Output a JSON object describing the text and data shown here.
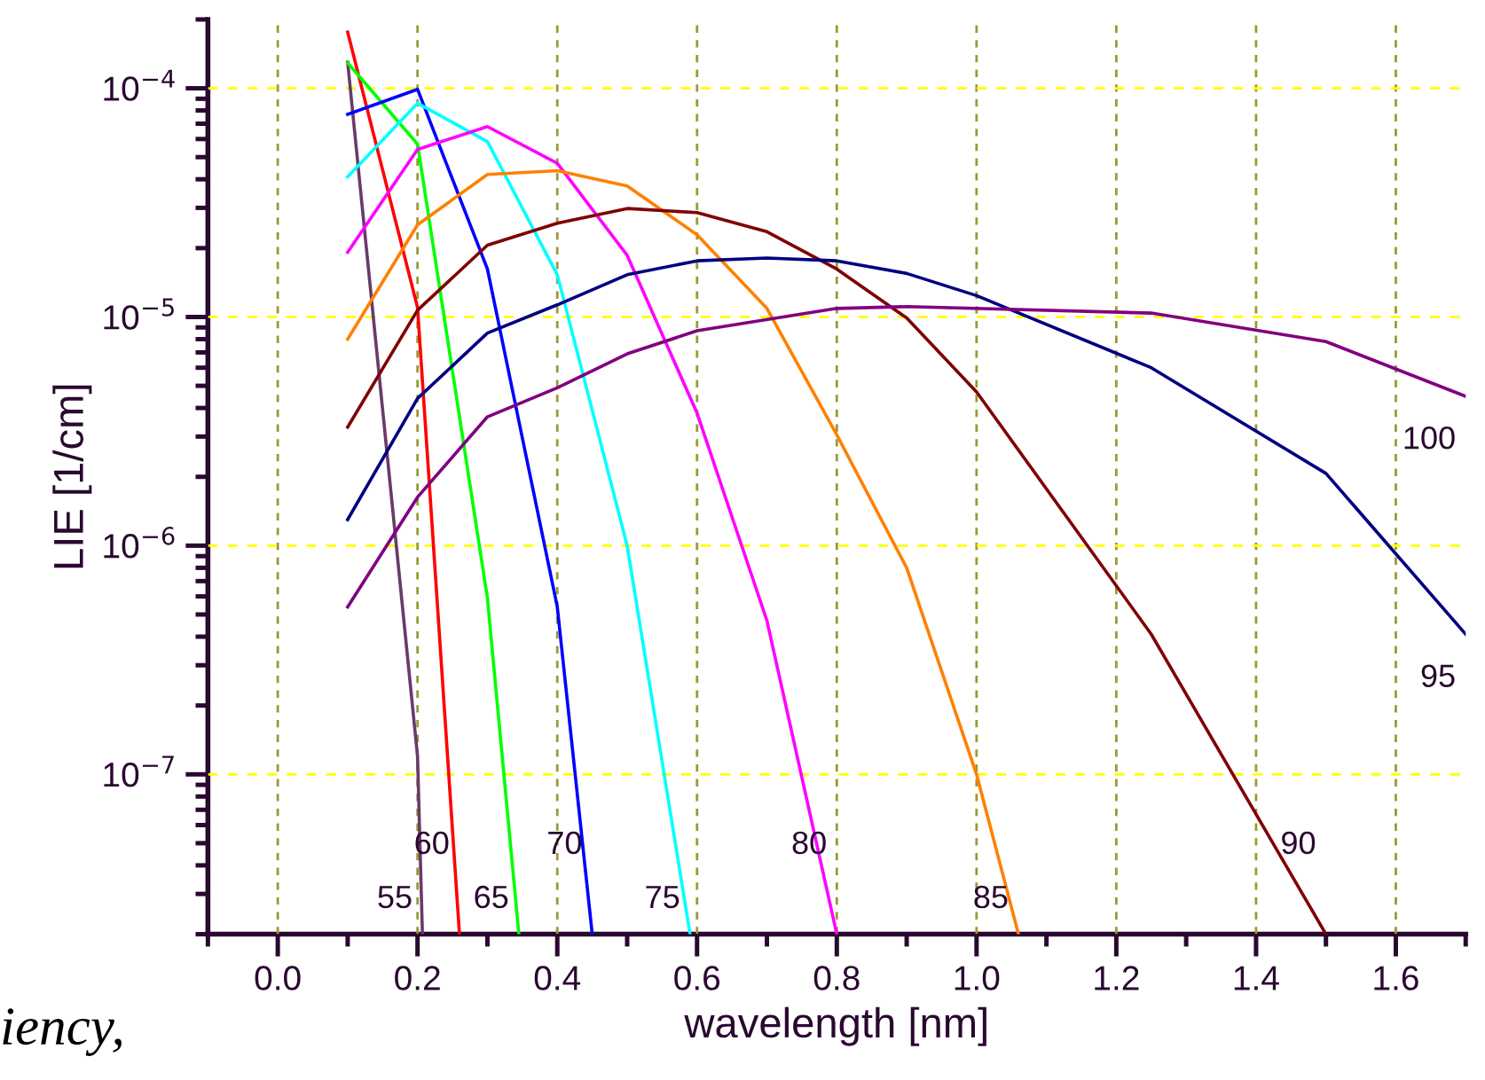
{
  "chart_data": {
    "type": "line",
    "xlabel": "wavelength [nm]",
    "ylabel": "LIE [1/cm]",
    "log": "y",
    "grid": true,
    "marker": "none",
    "line_style": "solid",
    "xlim": [
      -0.1,
      1.7
    ],
    "xticks": [
      {
        "value": 0,
        "label": "0.0"
      },
      0.2,
      0.4,
      0.6,
      0.8,
      {
        "value": 1,
        "label": "1.0"
      },
      1.2,
      1.4,
      1.6
    ],
    "ylim": [
      2e-08,
      0.0002
    ],
    "yticks": [
      {
        "value": 1e-07,
        "label": "10$^{−7}$"
      },
      {
        "value": 1e-06,
        "label": "10$^{−6}$"
      },
      {
        "value": 1e-05,
        "label": "10$^{−5}$"
      },
      {
        "value": 0.0001,
        "label": "10$^{−4}$"
      }
    ],
    "series": [
      {
        "name": "55",
        "color": "#6a3a6a",
        "x": [
          0.1,
          0.2,
          0.207
        ],
        "values": [
          0.00013,
          1.2e-07,
          2e-08
        ]
      },
      {
        "name": "60",
        "color": "#ff0000",
        "x": [
          0.1,
          0.2,
          0.26
        ],
        "values": [
          0.000176,
          1.1e-05,
          2e-08
        ]
      },
      {
        "name": "65",
        "color": "#00ff00",
        "x": [
          0.1,
          0.2,
          0.3,
          0.345
        ],
        "values": [
          0.000129,
          5.7e-05,
          5.9e-07,
          2e-08
        ]
      },
      {
        "name": "70",
        "color": "#0000ff",
        "x": [
          0.1,
          0.2,
          0.3,
          0.4,
          0.45
        ],
        "values": [
          7.7e-05,
          9.9e-05,
          1.62e-05,
          5.4e-07,
          2e-08
        ]
      },
      {
        "name": "75",
        "color": "#00ffff",
        "x": [
          0.1,
          0.2,
          0.3,
          0.4,
          0.5,
          0.59
        ],
        "values": [
          4.1e-05,
          8.6e-05,
          5.85e-05,
          1.53e-05,
          1e-06,
          2e-08
        ]
      },
      {
        "name": "80",
        "color": "#ff00ff",
        "x": [
          0.1,
          0.2,
          0.3,
          0.4,
          0.5,
          0.6,
          0.7,
          0.8
        ],
        "values": [
          1.92e-05,
          5.4e-05,
          6.8e-05,
          4.7e-05,
          1.86e-05,
          3.8e-06,
          4.7e-07,
          2e-08
        ]
      },
      {
        "name": "85",
        "color": "#ff8000",
        "x": [
          0.1,
          0.2,
          0.3,
          0.4,
          0.5,
          0.6,
          0.7,
          0.8,
          0.9,
          1.0,
          1.06
        ],
        "values": [
          8e-06,
          2.53e-05,
          4.2e-05,
          4.36e-05,
          3.74e-05,
          2.29e-05,
          1.09e-05,
          3.05e-06,
          8e-07,
          1e-07,
          2e-08
        ]
      },
      {
        "name": "90",
        "color": "#800000",
        "x": [
          0.1,
          0.2,
          0.3,
          0.4,
          0.5,
          0.6,
          0.7,
          0.8,
          0.9,
          1.0,
          1.25,
          1.5
        ],
        "values": [
          3.3e-06,
          1.07e-05,
          2.06e-05,
          2.57e-05,
          2.98e-05,
          2.86e-05,
          2.36e-05,
          1.62e-05,
          9.9e-06,
          4.7e-06,
          4.1e-07,
          2e-08
        ]
      },
      {
        "name": "95",
        "color": "#000080",
        "x": [
          0.1,
          0.2,
          0.3,
          0.4,
          0.5,
          0.6,
          0.7,
          0.8,
          0.9,
          1.0,
          1.25,
          1.5,
          1.7
        ],
        "values": [
          1.3e-06,
          4.4e-06,
          8.5e-06,
          1.13e-05,
          1.53e-05,
          1.76e-05,
          1.81e-05,
          1.76e-05,
          1.55e-05,
          1.24e-05,
          6e-06,
          2.07e-06,
          4.1e-07
        ]
      },
      {
        "name": "100",
        "color": "#800080",
        "x": [
          0.1,
          0.2,
          0.3,
          0.4,
          0.5,
          0.6,
          0.8,
          0.9,
          1.25,
          1.5,
          1.7
        ],
        "values": [
          5.4e-07,
          1.63e-06,
          3.66e-06,
          4.9e-06,
          6.9e-06,
          8.7e-06,
          1.09e-05,
          1.11e-05,
          1.04e-05,
          7.8e-06,
          4.5e-06
        ]
      }
    ],
    "annotations": [
      "iency,"
    ]
  }
}
